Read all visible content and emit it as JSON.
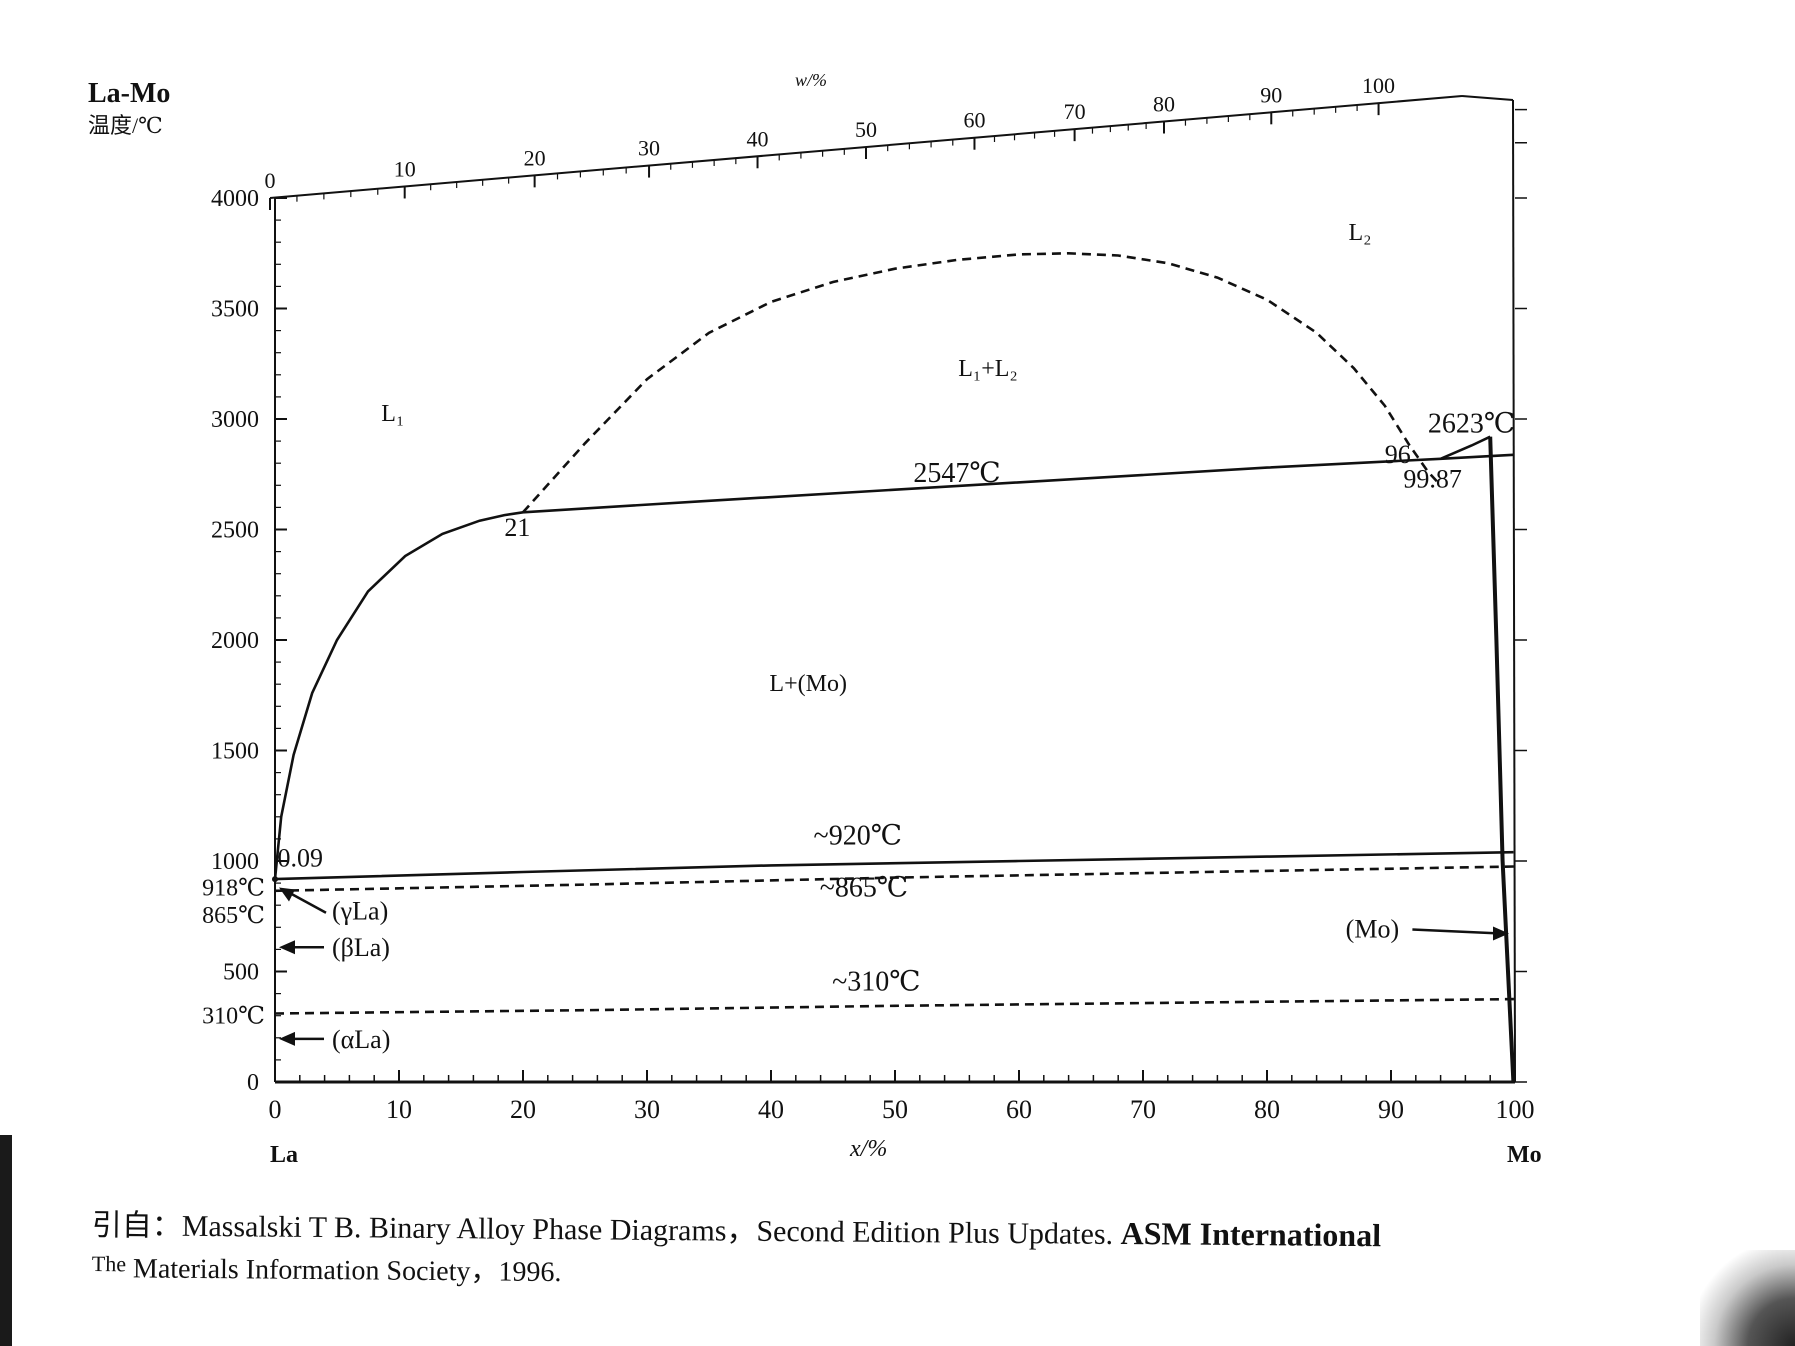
{
  "figure": {
    "title": "La-Mo",
    "ylabel": "温度/℃",
    "top_xlabel": "w/%",
    "xlabel": "x/%",
    "left_element": "La",
    "right_element": "Mo",
    "source_line1": "引自：Massalski T B.  Binary Alloy Phase Diagrams，Second Edition Plus Updates.",
    "source_line1_emph": "ASM International",
    "source_line2_first": "The",
    "source_line2_rest": " Materials Information Society，1996."
  },
  "chart_data": {
    "type": "phase-diagram",
    "title": "La-Mo",
    "xlabel": "x/%",
    "ylabel": "温度/℃",
    "top_xlabel": "w/%",
    "x_ticks": [
      0,
      10,
      20,
      30,
      40,
      50,
      60,
      70,
      80,
      90,
      100
    ],
    "x_tick_labels": [
      "0",
      "10",
      "20",
      "30",
      "40",
      "50",
      "60",
      "70",
      "80",
      "90",
      "100"
    ],
    "y_ticks": [
      0,
      500,
      1000,
      1500,
      2000,
      2500,
      3000,
      3500,
      4000
    ],
    "y_tick_labels": [
      "0",
      "500",
      "1000",
      "1500",
      "2000",
      "2500",
      "3000",
      "3500",
      "4000"
    ],
    "top_ticks": [
      0,
      10,
      20,
      30,
      40,
      50,
      60,
      70,
      80,
      90,
      100
    ],
    "top_tick_labels": [
      "0",
      "10",
      "20",
      "30",
      "40",
      "50",
      "60",
      "70",
      "80",
      "90",
      "100"
    ],
    "xlim": [
      0,
      100
    ],
    "ylim": [
      0,
      4000
    ],
    "phase_labels": [
      {
        "text": "L₁",
        "x": 9.5,
        "y": 2990
      },
      {
        "text": "L₁+L₂",
        "x": 57.5,
        "y": 3195
      },
      {
        "text": "L₂",
        "x": 87.5,
        "y": 3810
      },
      {
        "text": "L+(Mo)",
        "x": 43,
        "y": 1770
      }
    ],
    "temp_labels": [
      {
        "text": "2547℃",
        "x": 55,
        "y": 2715
      },
      {
        "text": "~920℃",
        "x": 47,
        "y": 1075
      },
      {
        "text": "~865℃",
        "x": 47.5,
        "y": 840
      },
      {
        "text": "~310℃",
        "x": 48.5,
        "y": 415
      },
      {
        "text": "2623℃",
        "x": 96.5,
        "y": 2940
      }
    ],
    "composition_labels": [
      {
        "text": "21",
        "x": 18.5,
        "y": 2470
      },
      {
        "text": "96",
        "x": 89.5,
        "y": 2800
      },
      {
        "text": "99.87",
        "x": 91,
        "y": 2690
      },
      {
        "text": "0.09",
        "x": 0.2,
        "y": 975
      }
    ],
    "left_axis_labels": [
      {
        "text": "918℃",
        "y": 880
      },
      {
        "text": "865℃",
        "y": 755
      },
      {
        "text": "310℃",
        "y": 300
      }
    ],
    "phase_arrow_labels": [
      {
        "text": "(γLa)",
        "y": 775
      },
      {
        "text": "(βLa)",
        "y": 610
      },
      {
        "text": "(αLa)",
        "y": 195
      },
      {
        "text": "(Mo)",
        "y": 690
      }
    ],
    "curves": [
      {
        "name": "liquidus-left",
        "style": "solid",
        "points": [
          [
            0,
            918
          ],
          [
            0.5,
            1200
          ],
          [
            1.5,
            1480
          ],
          [
            3,
            1760
          ],
          [
            5,
            2000
          ],
          [
            7.5,
            2220
          ],
          [
            10.5,
            2380
          ],
          [
            13.5,
            2480
          ],
          [
            16.5,
            2540
          ],
          [
            18.5,
            2565
          ],
          [
            20,
            2578
          ]
        ]
      },
      {
        "name": "miscibility-gap",
        "style": "dashed",
        "points": [
          [
            20,
            2578
          ],
          [
            25,
            2890
          ],
          [
            30,
            3180
          ],
          [
            35,
            3390
          ],
          [
            40,
            3530
          ],
          [
            45,
            3620
          ],
          [
            50,
            3680
          ],
          [
            55,
            3720
          ],
          [
            60,
            3745
          ],
          [
            64,
            3750
          ],
          [
            68,
            3740
          ],
          [
            72,
            3705
          ],
          [
            76,
            3640
          ],
          [
            80,
            3540
          ],
          [
            84,
            3390
          ],
          [
            87,
            3230
          ],
          [
            89.5,
            3060
          ],
          [
            91.5,
            2880
          ],
          [
            93,
            2760
          ],
          [
            94,
            2700
          ]
        ]
      },
      {
        "name": "monotectic-2547",
        "style": "solid",
        "points": [
          [
            20,
            2578
          ],
          [
            35,
            2630
          ],
          [
            50,
            2680
          ],
          [
            65,
            2730
          ],
          [
            80,
            2780
          ],
          [
            94,
            2820
          ],
          [
            99.87,
            2838
          ]
        ]
      },
      {
        "name": "liquidus-right",
        "style": "solid",
        "points": [
          [
            94,
            2820
          ],
          [
            96.5,
            2880
          ],
          [
            98,
            2920
          ]
        ]
      },
      {
        "name": "eutectic-920",
        "style": "solid",
        "points": [
          [
            0,
            918
          ],
          [
            20,
            950
          ],
          [
            40,
            980
          ],
          [
            60,
            1000
          ],
          [
            80,
            1020
          ],
          [
            99.87,
            1040
          ]
        ]
      },
      {
        "name": "transition-865",
        "style": "dashed",
        "points": [
          [
            0,
            865
          ],
          [
            25,
            893
          ],
          [
            50,
            925
          ],
          [
            75,
            950
          ],
          [
            99.9,
            975
          ]
        ]
      },
      {
        "name": "transition-310",
        "style": "dashed",
        "points": [
          [
            0,
            310
          ],
          [
            25,
            325
          ],
          [
            50,
            345
          ],
          [
            75,
            360
          ],
          [
            100,
            375
          ]
        ]
      },
      {
        "name": "mo-solvus",
        "style": "solid",
        "points": [
          [
            98,
            2920
          ],
          [
            98.5,
            2000
          ],
          [
            99,
            1000
          ],
          [
            99.87,
            0
          ]
        ]
      }
    ]
  }
}
